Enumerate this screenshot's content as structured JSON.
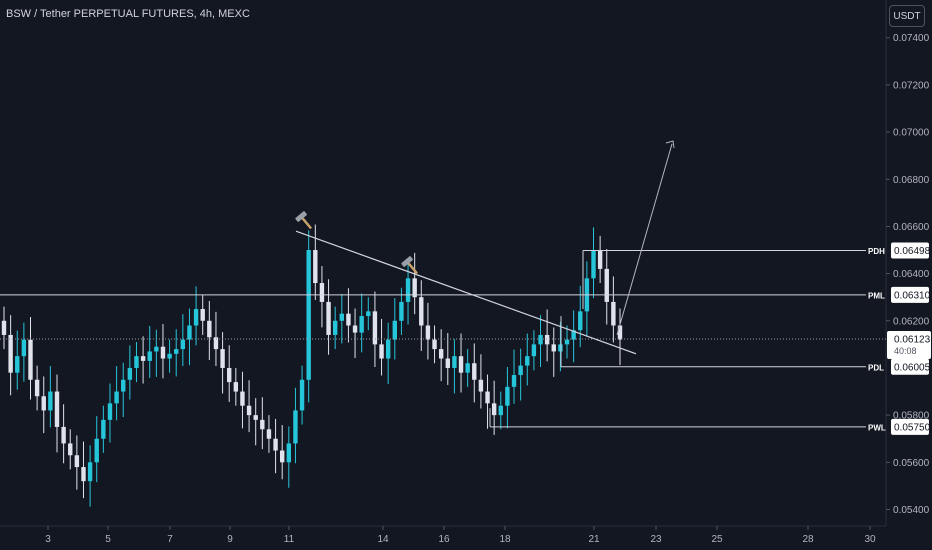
{
  "header": {
    "title": "BSW / Tether PERPETUAL FUTURES, 4h, MEXC",
    "currency_button": "USDT"
  },
  "colors": {
    "background": "#131722",
    "up": "#26c6da",
    "down": "#e0e3eb",
    "level_line": "#d1d4dc",
    "trend_line": "#d1d4dc",
    "projection_arrow": "#b2b5be"
  },
  "price_axis": {
    "ticks": [
      "0.07400",
      "0.07200",
      "0.07000",
      "0.06800",
      "0.06600",
      "0.06400",
      "0.06200",
      "0.05800",
      "0.05600",
      "0.05400"
    ],
    "current_price": "0.06123",
    "countdown": "40:08"
  },
  "time_axis": {
    "ticks": [
      "3",
      "5",
      "7",
      "9",
      "11",
      "14",
      "16",
      "18",
      "21",
      "23",
      "25",
      "28",
      "30"
    ]
  },
  "levels": [
    {
      "label": "PDH",
      "price": "0.06498",
      "value": 0.06498
    },
    {
      "label": "PML",
      "price": "0.06310",
      "value": 0.0631
    },
    {
      "label": "PDL",
      "price": "0.06005",
      "value": 0.06005
    },
    {
      "label": "PWL",
      "price": "0.05750",
      "value": 0.0575
    }
  ],
  "annotations": {
    "marker_icon": "hammer-icon",
    "projection": "arrow-up-right",
    "trendline": "descending"
  },
  "chart_data": {
    "type": "candlestick",
    "symbol": "BSW / Tether PERPETUAL FUTURES",
    "interval": "4h",
    "exchange": "MEXC",
    "ylim": [
      0.0533,
      0.0756
    ],
    "series": [
      {
        "name": "price",
        "values": [
          0.0614,
          0.0598,
          0.0605,
          0.0612,
          0.0595,
          0.0588,
          0.0582,
          0.059,
          0.0575,
          0.0568,
          0.0563,
          0.0558,
          0.0552,
          0.056,
          0.057,
          0.0578,
          0.0585,
          0.059,
          0.0595,
          0.06,
          0.0605,
          0.0603,
          0.0607,
          0.0609,
          0.0604,
          0.0606,
          0.0608,
          0.0612,
          0.0618,
          0.0625,
          0.062,
          0.0613,
          0.0608,
          0.06,
          0.0594,
          0.059,
          0.0584,
          0.058,
          0.0578,
          0.0574,
          0.057,
          0.0565,
          0.056,
          0.0568,
          0.0582,
          0.0595,
          0.065,
          0.0636,
          0.0628,
          0.0614,
          0.062,
          0.0623,
          0.0618,
          0.0615,
          0.0622,
          0.0624,
          0.061,
          0.0604,
          0.0612,
          0.062,
          0.0628,
          0.0638,
          0.063,
          0.0618,
          0.0612,
          0.0608,
          0.0604,
          0.06,
          0.0605,
          0.0598,
          0.0602,
          0.0595,
          0.059,
          0.0585,
          0.058,
          0.0584,
          0.0592,
          0.0597,
          0.0601,
          0.0605,
          0.061,
          0.0614,
          0.061,
          0.0607,
          0.061,
          0.0612,
          0.0616,
          0.0624,
          0.0638,
          0.065,
          0.0642,
          0.0628,
          0.0618,
          0.0612
        ]
      }
    ]
  }
}
